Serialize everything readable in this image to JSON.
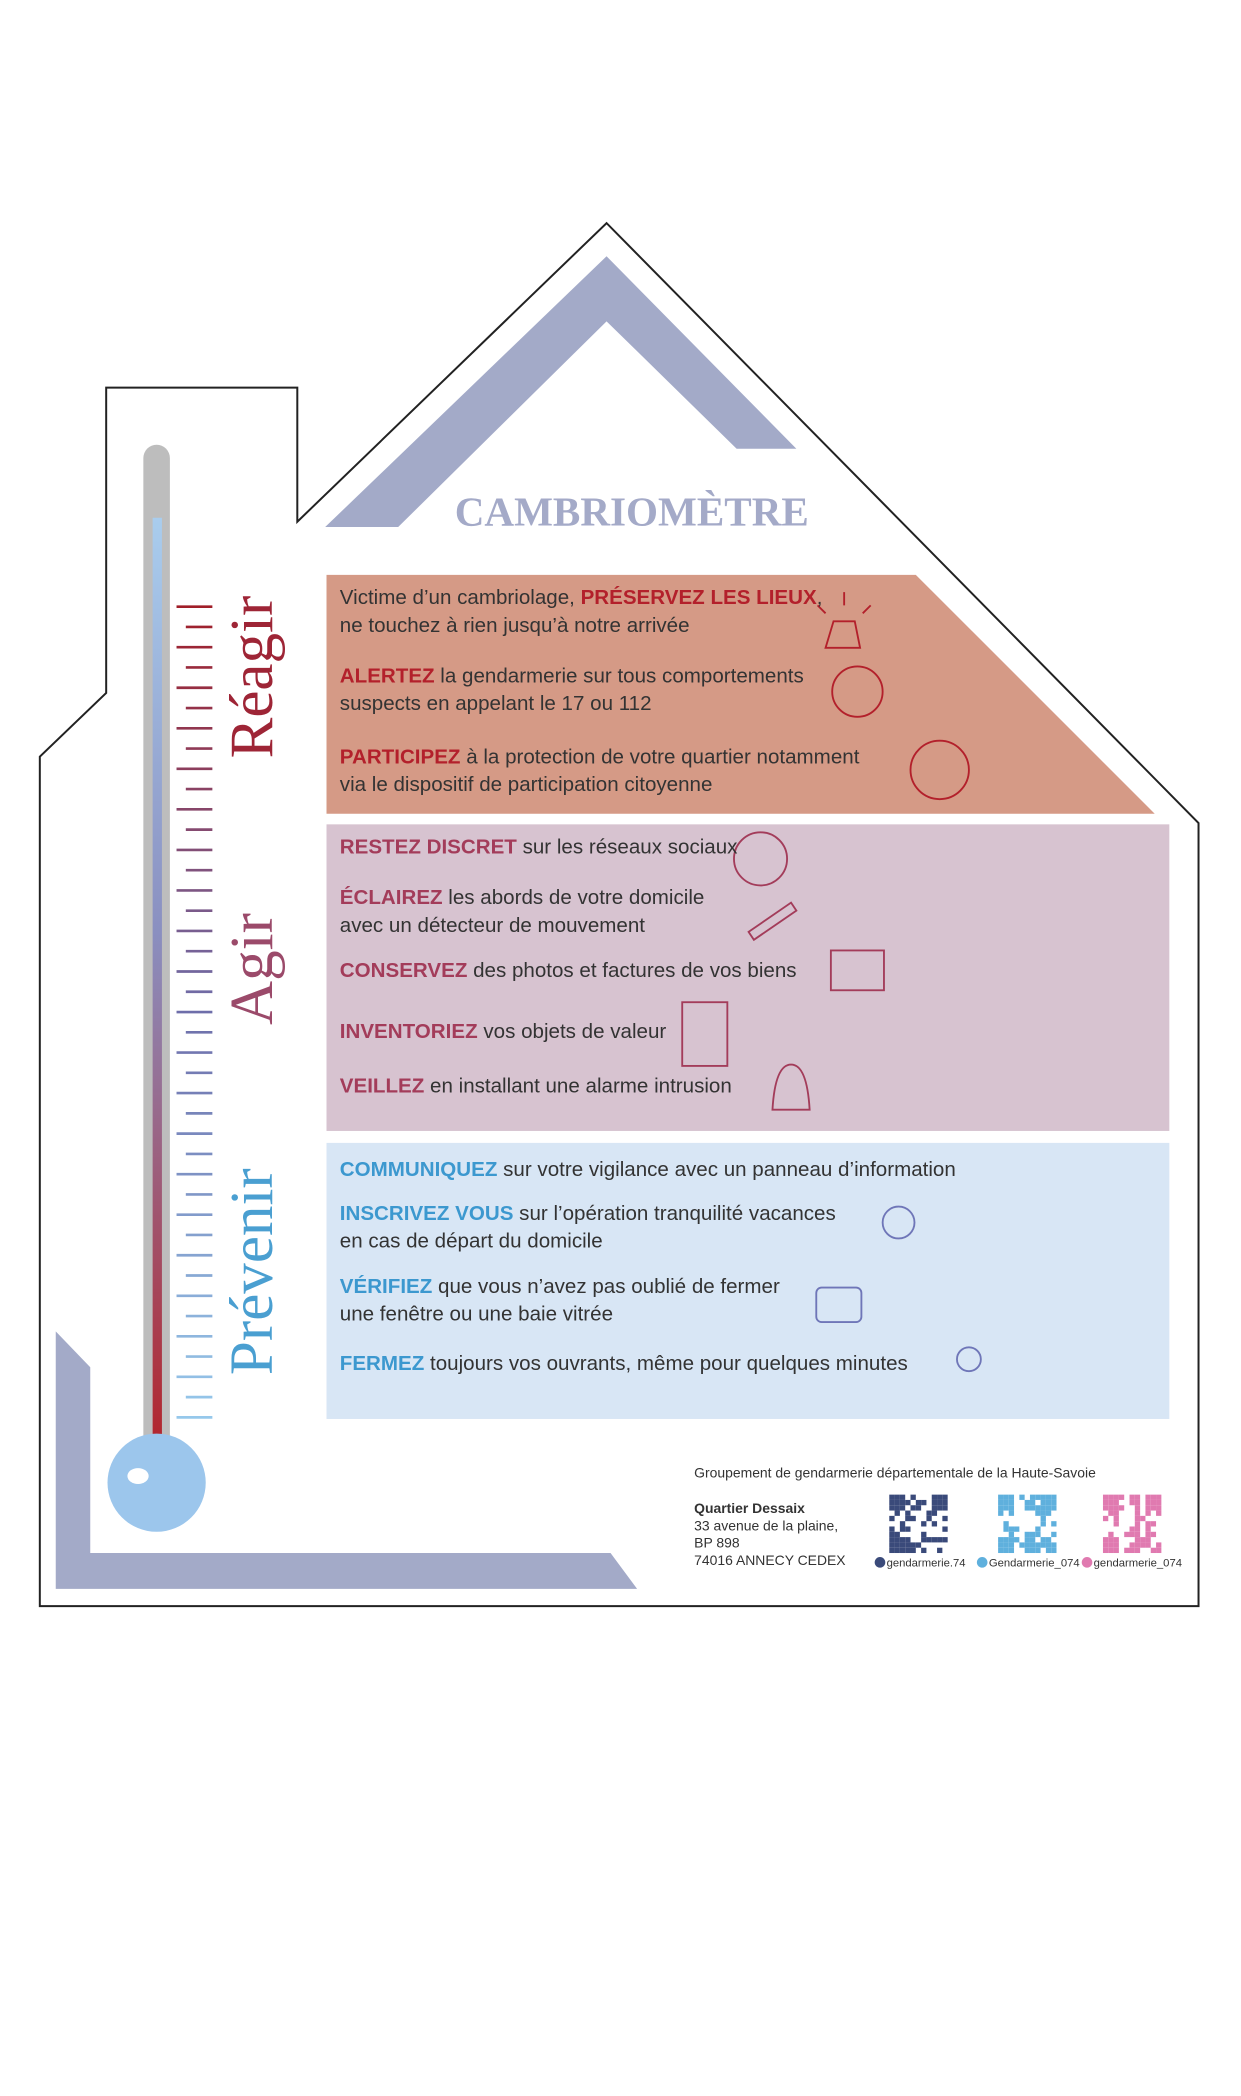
{
  "title": "CAMBRIOMÈTRE",
  "sections": [
    {
      "label": "Réagir",
      "items": [
        {
          "lines": [
            [
              {
                "text": "Victime d’un cambriolage, "
              },
              {
                "text": "PRÉSERVEZ LES LIEUX",
                "strong": true
              },
              {
                "text": ","
              }
            ],
            [
              {
                "text": "ne touchez à rien jusqu’à notre arrivée"
              }
            ]
          ]
        },
        {
          "lines": [
            [
              {
                "text": "ALERTEZ",
                "strong": true
              },
              {
                "text": " la gendarmerie sur tous comportements"
              }
            ],
            [
              {
                "text": "suspects en appelant le 17 ou 112"
              }
            ]
          ]
        },
        {
          "lines": [
            [
              {
                "text": "PARTICIPEZ",
                "strong": true
              },
              {
                "text": " à la protection de votre quartier notamment"
              }
            ],
            [
              {
                "text": "via le dispositif de participation citoyenne"
              }
            ]
          ]
        }
      ]
    },
    {
      "label": "Agir",
      "items": [
        {
          "lines": [
            [
              {
                "text": "RESTEZ DISCRET",
                "strong": true
              },
              {
                "text": " sur les réseaux sociaux"
              }
            ]
          ]
        },
        {
          "lines": [
            [
              {
                "text": "ÉCLAIREZ",
                "strong": true
              },
              {
                "text": " les abords de votre domicile"
              }
            ],
            [
              {
                "text": "avec un détecteur de mouvement"
              }
            ]
          ]
        },
        {
          "lines": [
            [
              {
                "text": "CONSERVEZ",
                "strong": true
              },
              {
                "text": " des photos et factures de vos biens"
              }
            ]
          ]
        },
        {
          "lines": [
            [
              {
                "text": "INVENTORIEZ",
                "strong": true
              },
              {
                "text": " vos objets de valeur"
              }
            ]
          ]
        },
        {
          "lines": [
            [
              {
                "text": "VEILLEZ",
                "strong": true
              },
              {
                "text": " en installant une alarme intrusion"
              }
            ]
          ]
        }
      ]
    },
    {
      "label": "Prévenir",
      "items": [
        {
          "lines": [
            [
              {
                "text": "COMMUNIQUEZ",
                "strong": true
              },
              {
                "text": " sur votre vigilance avec un panneau d’information"
              }
            ]
          ]
        },
        {
          "lines": [
            [
              {
                "text": "INSCRIVEZ VOUS",
                "strong": true
              },
              {
                "text": " sur l’opération tranquilité vacances"
              }
            ],
            [
              {
                "text": "en cas de départ du domicile"
              }
            ]
          ]
        },
        {
          "lines": [
            [
              {
                "text": "VÉRIFIEZ",
                "strong": true
              },
              {
                "text": " que vous n’avez pas oublié de fermer"
              }
            ],
            [
              {
                "text": "une fenêtre ou une baie vitrée"
              }
            ]
          ]
        },
        {
          "lines": [
            [
              {
                "text": "FERMEZ",
                "strong": true
              },
              {
                "text": " toujours vos ouvrants, même pour quelques minutes"
              }
            ]
          ]
        }
      ]
    }
  ],
  "footer": {
    "organization": "Groupement de gendarmerie départementale  de la Haute-Savoie",
    "address": [
      "Quartier Dessaix",
      "33 avenue de la plaine,",
      "BP 898",
      "74016 ANNECY CEDEX"
    ],
    "social": [
      "gendarmerie.74",
      "Gendarmerie_074",
      "gendarmerie_074"
    ]
  }
}
